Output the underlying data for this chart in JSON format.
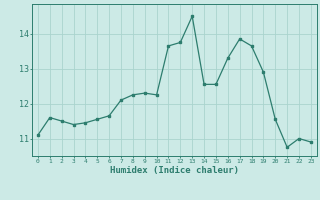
{
  "x": [
    0,
    1,
    2,
    3,
    4,
    5,
    6,
    7,
    8,
    9,
    10,
    11,
    12,
    13,
    14,
    15,
    16,
    17,
    18,
    19,
    20,
    21,
    22,
    23
  ],
  "y": [
    11.1,
    11.6,
    11.5,
    11.4,
    11.45,
    11.55,
    11.65,
    12.1,
    12.25,
    12.3,
    12.25,
    13.65,
    13.75,
    14.5,
    12.55,
    12.55,
    13.3,
    13.85,
    13.65,
    12.9,
    11.55,
    10.75,
    11.0,
    10.9
  ],
  "xlabel": "Humidex (Indice chaleur)",
  "yticks": [
    11,
    12,
    13,
    14
  ],
  "xticks": [
    0,
    1,
    2,
    3,
    4,
    5,
    6,
    7,
    8,
    9,
    10,
    11,
    12,
    13,
    14,
    15,
    16,
    17,
    18,
    19,
    20,
    21,
    22,
    23
  ],
  "line_color": "#2d7d6e",
  "bg_color": "#cceae6",
  "grid_color": "#aad4ce",
  "ylim": [
    10.5,
    14.85
  ],
  "xlim": [
    -0.5,
    23.5
  ]
}
